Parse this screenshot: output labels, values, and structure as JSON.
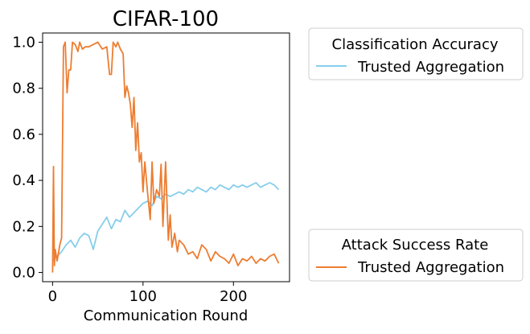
{
  "chart_data": {
    "type": "line",
    "title": "CIFAR-100",
    "xlabel": "Communication Round",
    "ylabel": "",
    "xlim": [
      -11,
      262
    ],
    "ylim": [
      -0.04,
      1.04
    ],
    "xticks": [
      0,
      100,
      200
    ],
    "yticks": [
      0.0,
      0.2,
      0.4,
      0.6,
      0.8,
      1.0
    ],
    "grid": false,
    "legends": [
      {
        "title": "Classification Accuracy",
        "placement": "upper-right outside",
        "entries": [
          {
            "label": "Trusted Aggregation",
            "color": "#87CEEB"
          }
        ]
      },
      {
        "title": "Attack Success Rate",
        "placement": "lower-right outside",
        "entries": [
          {
            "label": "Trusted Aggregation",
            "color": "#ED7D31"
          }
        ]
      }
    ],
    "series": [
      {
        "group": "Classification Accuracy",
        "name": "Trusted Aggregation",
        "color": "#87CEEB",
        "x": [
          0,
          5,
          10,
          15,
          20,
          25,
          30,
          35,
          40,
          45,
          50,
          55,
          60,
          65,
          70,
          75,
          80,
          85,
          90,
          95,
          100,
          105,
          110,
          115,
          120,
          125,
          130,
          135,
          140,
          145,
          150,
          155,
          160,
          165,
          170,
          175,
          180,
          185,
          190,
          195,
          200,
          205,
          210,
          215,
          220,
          225,
          230,
          235,
          240,
          245,
          250
        ],
        "y": [
          0.05,
          0.07,
          0.09,
          0.12,
          0.14,
          0.11,
          0.15,
          0.17,
          0.16,
          0.1,
          0.18,
          0.21,
          0.24,
          0.19,
          0.23,
          0.22,
          0.27,
          0.24,
          0.26,
          0.28,
          0.3,
          0.31,
          0.29,
          0.33,
          0.32,
          0.34,
          0.33,
          0.34,
          0.35,
          0.34,
          0.36,
          0.35,
          0.37,
          0.36,
          0.35,
          0.37,
          0.36,
          0.38,
          0.37,
          0.36,
          0.38,
          0.37,
          0.38,
          0.37,
          0.38,
          0.39,
          0.37,
          0.38,
          0.39,
          0.38,
          0.36
        ]
      },
      {
        "group": "Attack Success Rate",
        "name": "Trusted Aggregation",
        "color": "#ED7D31",
        "x": [
          0,
          1,
          2,
          3,
          5,
          8,
          10,
          12,
          14,
          16,
          18,
          20,
          22,
          25,
          28,
          30,
          33,
          36,
          40,
          45,
          50,
          55,
          60,
          63,
          65,
          67,
          70,
          72,
          75,
          78,
          80,
          82,
          84,
          86,
          88,
          90,
          92,
          94,
          96,
          98,
          100,
          102,
          105,
          108,
          110,
          112,
          115,
          118,
          120,
          122,
          125,
          128,
          130,
          132,
          135,
          138,
          140,
          145,
          150,
          155,
          160,
          165,
          170,
          175,
          180,
          185,
          190,
          195,
          200,
          205,
          210,
          215,
          220,
          225,
          230,
          235,
          240,
          245,
          250
        ],
        "y": [
          0.0,
          0.46,
          0.03,
          0.1,
          0.05,
          0.12,
          0.15,
          0.98,
          1.0,
          0.78,
          0.88,
          0.88,
          1.0,
          0.99,
          0.96,
          1.0,
          0.97,
          0.98,
          0.98,
          0.99,
          1.0,
          0.97,
          0.98,
          0.86,
          0.86,
          1.0,
          0.98,
          1.0,
          0.97,
          0.95,
          0.76,
          0.81,
          0.78,
          0.73,
          0.63,
          0.76,
          0.53,
          0.65,
          0.48,
          0.52,
          0.35,
          0.48,
          0.35,
          0.23,
          0.48,
          0.3,
          0.36,
          0.33,
          0.47,
          0.2,
          0.48,
          0.14,
          0.25,
          0.11,
          0.17,
          0.09,
          0.14,
          0.12,
          0.08,
          0.09,
          0.06,
          0.12,
          0.1,
          0.05,
          0.09,
          0.07,
          0.06,
          0.04,
          0.08,
          0.03,
          0.06,
          0.05,
          0.07,
          0.04,
          0.06,
          0.05,
          0.07,
          0.08,
          0.04
        ]
      }
    ]
  }
}
